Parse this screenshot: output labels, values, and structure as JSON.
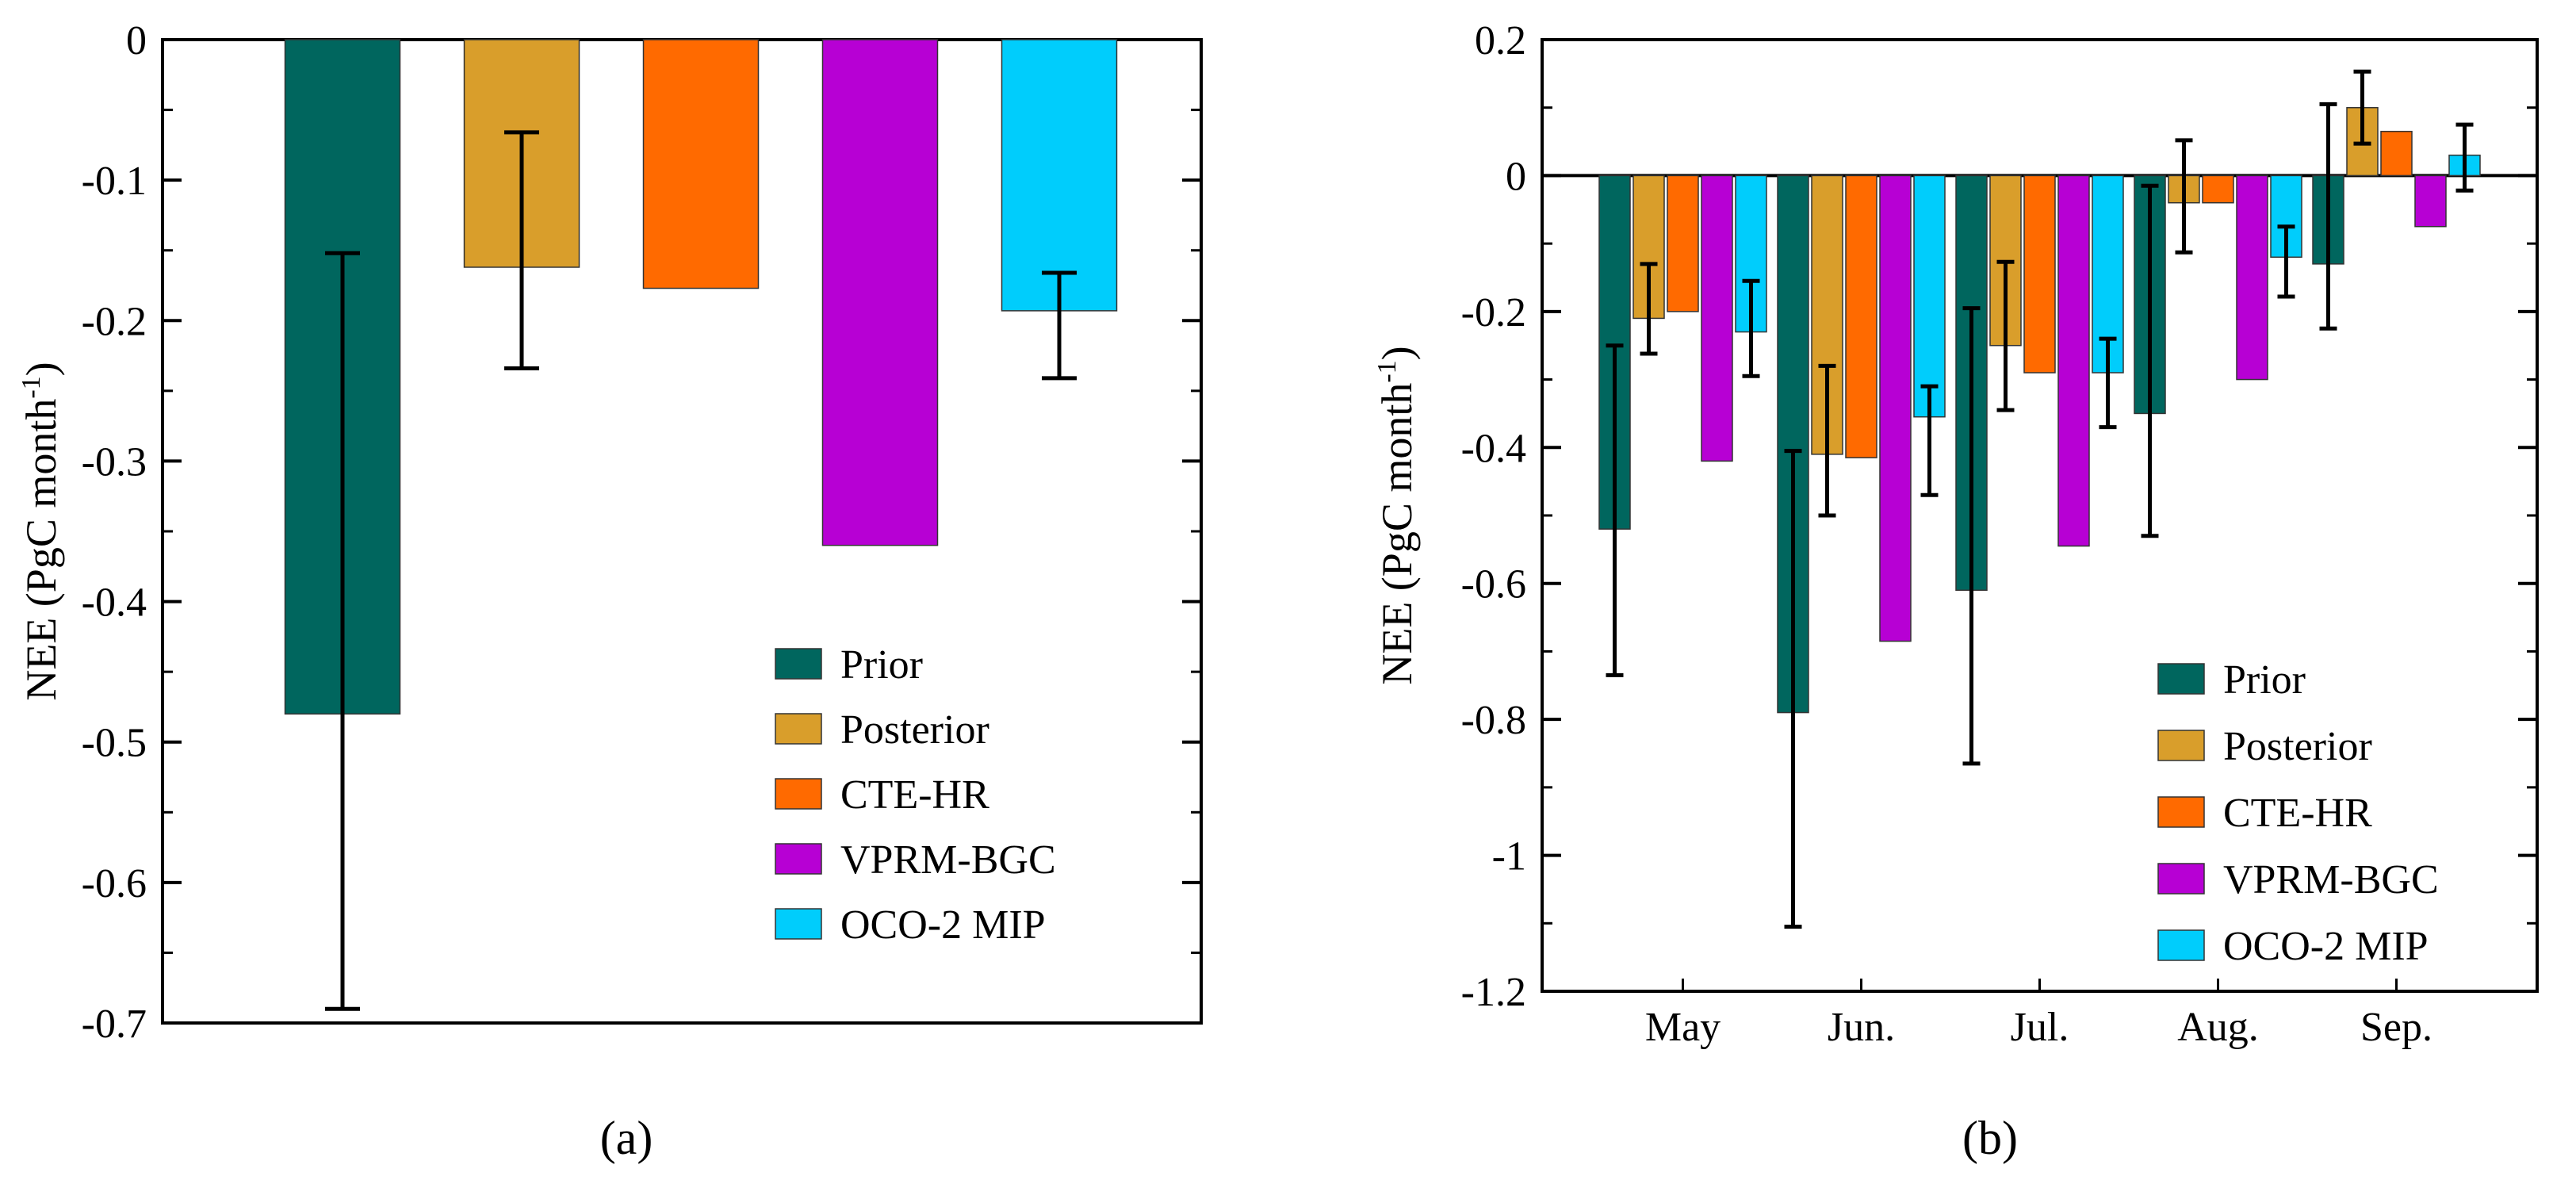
{
  "chart_data": [
    {
      "id": "a",
      "panel_label": "(a)",
      "type": "bar",
      "ylabel": "NEE (PgC month-1)",
      "ylabel_main": "NEE (PgC month",
      "ylabel_sup": "-1",
      "ylabel_close": ")",
      "ylim": [
        -0.7,
        0
      ],
      "yticks": [
        0,
        -0.1,
        -0.2,
        -0.3,
        -0.4,
        -0.5,
        -0.6,
        -0.7
      ],
      "ytick_labels": [
        "0",
        "-0.1",
        "-0.2",
        "-0.3",
        "-0.4",
        "-0.5",
        "-0.6",
        "-0.7"
      ],
      "categories": [
        "Prior",
        "Posterior",
        "CTE-HR",
        "VPRM-BGC",
        "OCO-2 MIP"
      ],
      "values": [
        -0.48,
        -0.162,
        -0.177,
        -0.36,
        -0.193
      ],
      "error_bars": [
        [
          -0.69,
          -0.152
        ],
        [
          -0.234,
          -0.066
        ],
        null,
        null,
        [
          -0.241,
          -0.166
        ]
      ],
      "legend_position": "lower-right",
      "legend": [
        "Prior",
        "Posterior",
        "CTE-HR",
        "VPRM-BGC",
        "OCO-2 MIP"
      ]
    },
    {
      "id": "b",
      "panel_label": "(b)",
      "type": "bar",
      "ylabel": "NEE (PgC month-1)",
      "ylabel_main": "NEE (PgC month",
      "ylabel_sup": "-1",
      "ylabel_close": ")",
      "ylim": [
        -1.2,
        0.2
      ],
      "yticks": [
        0.2,
        0,
        -0.2,
        -0.4,
        -0.6,
        -0.8,
        -1,
        -1.2
      ],
      "ytick_labels": [
        "0.2",
        "0",
        "-0.2",
        "-0.4",
        "-0.6",
        "-0.8",
        "-1",
        "-1.2"
      ],
      "categories": [
        "May",
        "Jun.",
        "Jul.",
        "Aug.",
        "Sep."
      ],
      "series": [
        {
          "name": "Prior",
          "values": [
            -0.52,
            -0.79,
            -0.61,
            -0.35,
            -0.13
          ],
          "error_bars": [
            [
              -0.735,
              -0.25
            ],
            [
              -1.105,
              -0.405
            ],
            [
              -0.865,
              -0.195
            ],
            [
              -0.53,
              -0.015
            ],
            [
              -0.225,
              0.105
            ]
          ]
        },
        {
          "name": "Posterior",
          "values": [
            -0.21,
            -0.41,
            -0.25,
            -0.04,
            0.1
          ],
          "error_bars": [
            [
              -0.262,
              -0.13
            ],
            [
              -0.5,
              -0.28
            ],
            [
              -0.345,
              -0.127
            ],
            [
              -0.113,
              0.052
            ],
            [
              0.047,
              0.153
            ]
          ]
        },
        {
          "name": "CTE-HR",
          "values": [
            -0.2,
            -0.415,
            -0.29,
            -0.04,
            0.065
          ],
          "error_bars": null
        },
        {
          "name": "VPRM-BGC",
          "values": [
            -0.42,
            -0.685,
            -0.545,
            -0.3,
            -0.075
          ],
          "error_bars": null
        },
        {
          "name": "OCO-2 MIP",
          "values": [
            -0.23,
            -0.355,
            -0.29,
            -0.12,
            0.03
          ],
          "error_bars": [
            [
              -0.295,
              -0.155
            ],
            [
              -0.47,
              -0.31
            ],
            [
              -0.37,
              -0.24
            ],
            [
              -0.178,
              -0.075
            ],
            [
              -0.022,
              0.075
            ]
          ]
        }
      ],
      "legend_position": "lower-right",
      "legend": [
        "Prior",
        "Posterior",
        "CTE-HR",
        "VPRM-BGC",
        "OCO-2 MIP"
      ]
    }
  ],
  "series_colors": {
    "Prior": "#00665e",
    "Posterior": "#d99e2b",
    "CTE-HR": "#ff6a00",
    "VPRM-BGC": "#b700d4",
    "OCO-2 MIP": "#00cdfc"
  }
}
